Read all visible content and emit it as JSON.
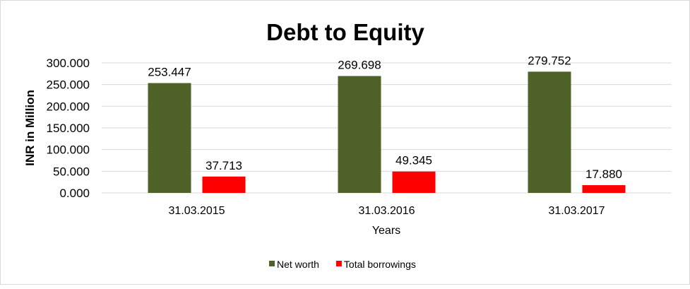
{
  "chart_data": {
    "type": "bar",
    "title": "Debt to Equity",
    "xlabel": "Years",
    "ylabel": "INR in Million",
    "categories": [
      "31.03.2015",
      "31.03.2016",
      "31.03.2017"
    ],
    "series": [
      {
        "name": "Net worth",
        "values": [
          253.447,
          269.698,
          279.752
        ],
        "labels": [
          "253.447",
          "269.698",
          "279.752"
        ],
        "color": "#4f6228"
      },
      {
        "name": "Total borrowings",
        "values": [
          37.713,
          49.345,
          17.88
        ],
        "labels": [
          "37.713",
          "49.345",
          "17.880"
        ],
        "color": "#ff0000"
      }
    ],
    "ylim": [
      0,
      300
    ],
    "yticks": [
      "0.000",
      "50.000",
      "100.000",
      "150.000",
      "200.000",
      "250.000",
      "300.000"
    ],
    "grid": true,
    "legend": "bottom"
  }
}
